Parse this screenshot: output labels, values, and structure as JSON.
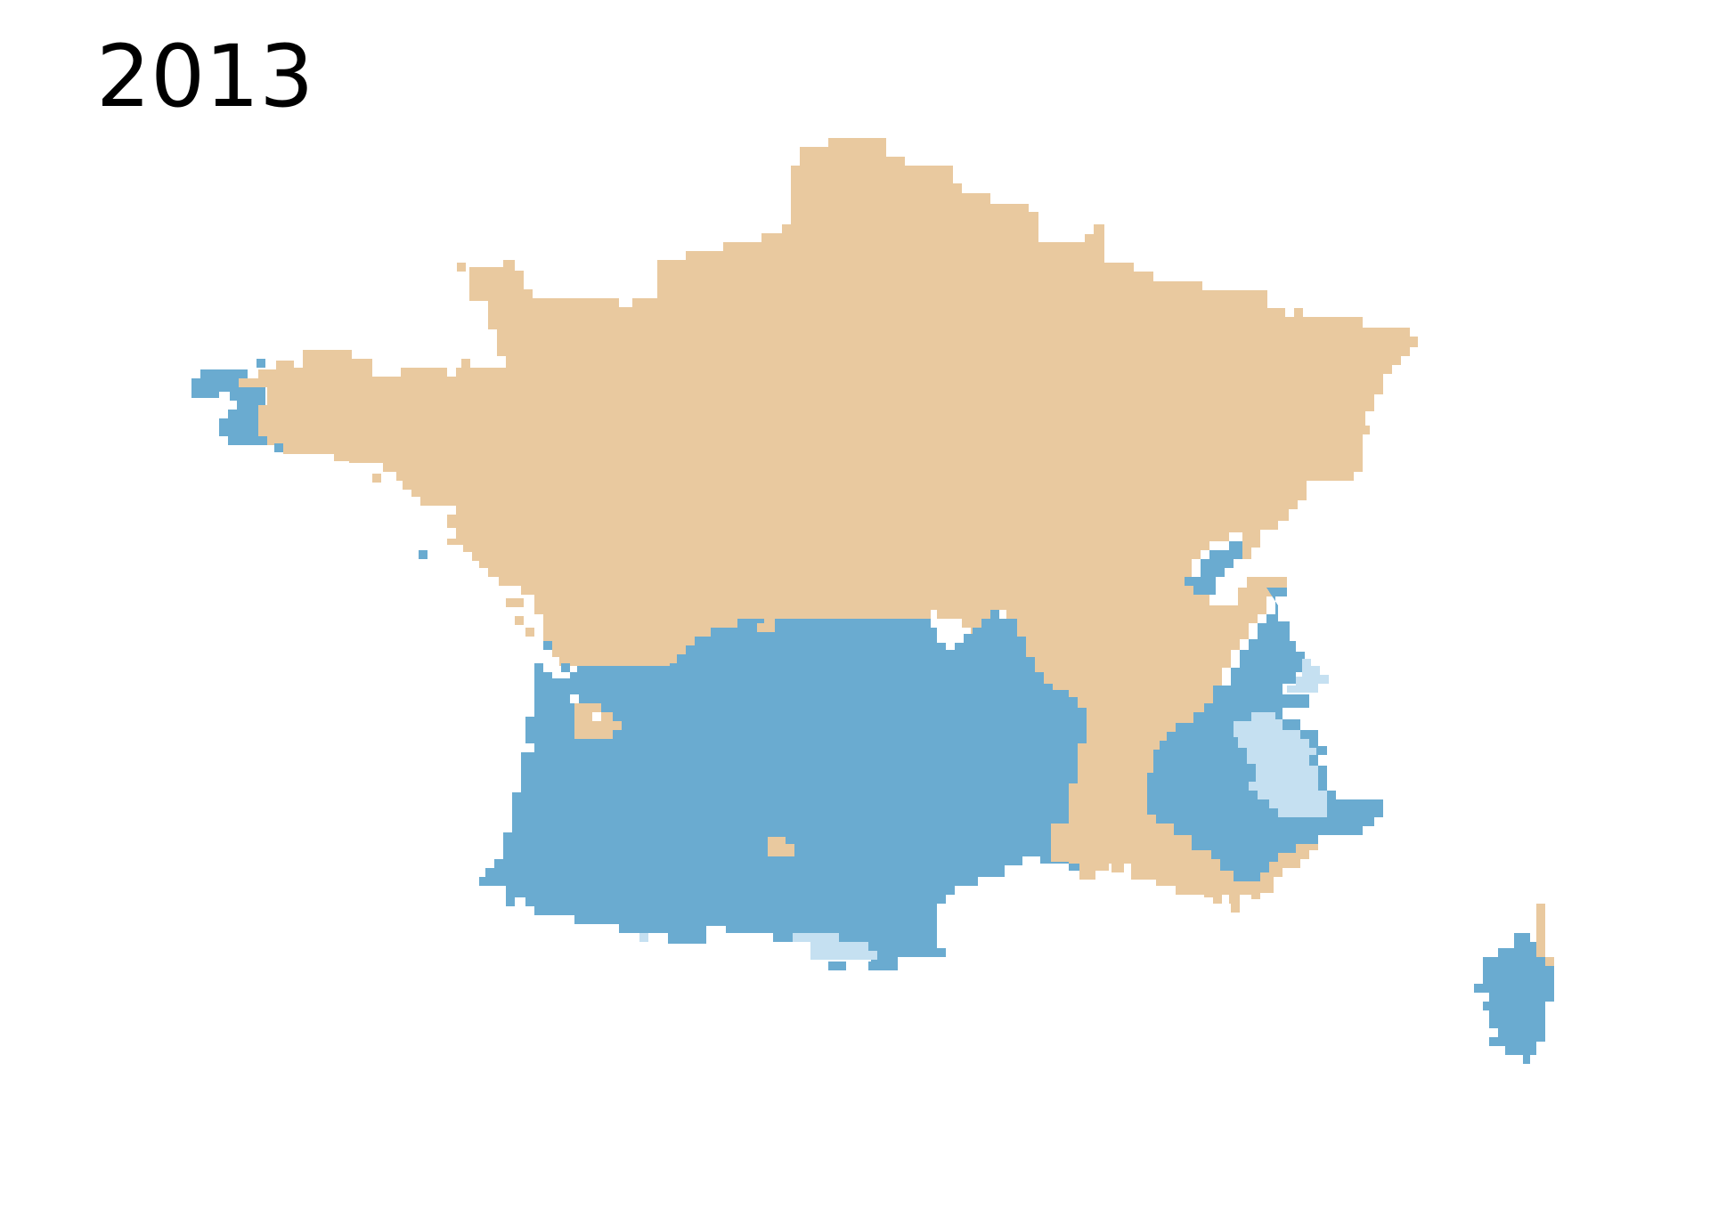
{
  "title": "2013",
  "colors": {
    "background": "#ffffff",
    "tan": "#E9C99F",
    "blue": "#6AABD0",
    "light_blue": "#C5E0F1"
  },
  "regions": [
    {
      "name": "mainland-france",
      "color_key": "tan"
    },
    {
      "name": "southwest",
      "color_key": "blue"
    },
    {
      "name": "southeast-alps",
      "color_key": "blue"
    },
    {
      "name": "corsica",
      "color_key": "blue"
    },
    {
      "name": "brittany-tip",
      "color_key": "blue"
    },
    {
      "name": "alps-high",
      "color_key": "light_blue"
    },
    {
      "name": "pyrenees-high",
      "color_key": "light_blue"
    }
  ]
}
